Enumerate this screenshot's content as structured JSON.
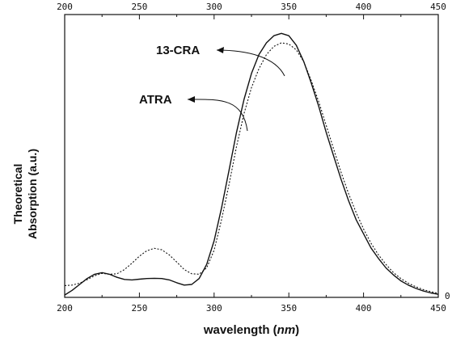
{
  "chart_data": {
    "type": "line",
    "xlabel": "wavelength (nm)",
    "xlabel_parts": {
      "before": "wavelength (",
      "italic": "nm",
      "after": ")"
    },
    "ylabel_lines": [
      "Theoretical",
      "Absorption (a.u.)"
    ],
    "xlim": [
      200,
      450
    ],
    "ylim": [
      0,
      1.2
    ],
    "x_ticks": [
      200,
      250,
      300,
      350,
      400,
      450
    ],
    "top_ticks": [
      200,
      250,
      300,
      350,
      400,
      450
    ],
    "right_tick_label": "0",
    "series": [
      {
        "name": "13-CRA",
        "style": "solid",
        "color": "#111111",
        "points": [
          [
            200,
            0.01
          ],
          [
            205,
            0.03
          ],
          [
            210,
            0.055
          ],
          [
            215,
            0.08
          ],
          [
            220,
            0.098
          ],
          [
            225,
            0.105
          ],
          [
            230,
            0.098
          ],
          [
            235,
            0.085
          ],
          [
            240,
            0.076
          ],
          [
            245,
            0.074
          ],
          [
            250,
            0.077
          ],
          [
            255,
            0.08
          ],
          [
            260,
            0.081
          ],
          [
            265,
            0.08
          ],
          [
            270,
            0.074
          ],
          [
            275,
            0.062
          ],
          [
            280,
            0.052
          ],
          [
            285,
            0.055
          ],
          [
            290,
            0.08
          ],
          [
            295,
            0.14
          ],
          [
            300,
            0.24
          ],
          [
            305,
            0.38
          ],
          [
            310,
            0.54
          ],
          [
            315,
            0.7
          ],
          [
            320,
            0.84
          ],
          [
            325,
            0.95
          ],
          [
            330,
            1.03
          ],
          [
            335,
            1.08
          ],
          [
            340,
            1.11
          ],
          [
            345,
            1.12
          ],
          [
            350,
            1.11
          ],
          [
            355,
            1.07
          ],
          [
            360,
            1.0
          ],
          [
            365,
            0.91
          ],
          [
            370,
            0.81
          ],
          [
            375,
            0.7
          ],
          [
            380,
            0.6
          ],
          [
            385,
            0.5
          ],
          [
            390,
            0.41
          ],
          [
            395,
            0.33
          ],
          [
            400,
            0.27
          ],
          [
            405,
            0.21
          ],
          [
            410,
            0.165
          ],
          [
            415,
            0.125
          ],
          [
            420,
            0.095
          ],
          [
            425,
            0.07
          ],
          [
            430,
            0.052
          ],
          [
            435,
            0.038
          ],
          [
            440,
            0.027
          ],
          [
            445,
            0.019
          ],
          [
            450,
            0.013
          ]
        ]
      },
      {
        "name": "ATRA",
        "style": "dotted",
        "color": "#111111",
        "points": [
          [
            200,
            0.05
          ],
          [
            205,
            0.052
          ],
          [
            210,
            0.06
          ],
          [
            215,
            0.075
          ],
          [
            220,
            0.092
          ],
          [
            225,
            0.102
          ],
          [
            230,
            0.098
          ],
          [
            235,
            0.1
          ],
          [
            240,
            0.118
          ],
          [
            245,
            0.145
          ],
          [
            250,
            0.175
          ],
          [
            255,
            0.198
          ],
          [
            260,
            0.208
          ],
          [
            265,
            0.202
          ],
          [
            270,
            0.18
          ],
          [
            275,
            0.15
          ],
          [
            280,
            0.118
          ],
          [
            285,
            0.1
          ],
          [
            290,
            0.098
          ],
          [
            295,
            0.125
          ],
          [
            300,
            0.2
          ],
          [
            305,
            0.33
          ],
          [
            310,
            0.48
          ],
          [
            315,
            0.64
          ],
          [
            320,
            0.78
          ],
          [
            325,
            0.89
          ],
          [
            330,
            0.97
          ],
          [
            335,
            1.03
          ],
          [
            340,
            1.065
          ],
          [
            345,
            1.08
          ],
          [
            350,
            1.075
          ],
          [
            355,
            1.05
          ],
          [
            360,
            1.0
          ],
          [
            365,
            0.92
          ],
          [
            370,
            0.83
          ],
          [
            375,
            0.73
          ],
          [
            380,
            0.63
          ],
          [
            385,
            0.53
          ],
          [
            390,
            0.44
          ],
          [
            395,
            0.36
          ],
          [
            400,
            0.29
          ],
          [
            405,
            0.23
          ],
          [
            410,
            0.18
          ],
          [
            415,
            0.14
          ],
          [
            420,
            0.105
          ],
          [
            425,
            0.08
          ],
          [
            430,
            0.06
          ],
          [
            435,
            0.045
          ],
          [
            440,
            0.033
          ],
          [
            445,
            0.024
          ],
          [
            450,
            0.017
          ]
        ]
      }
    ],
    "annotations": [
      {
        "text": "13-CRA",
        "series": "13-CRA"
      },
      {
        "text": "ATRA",
        "series": "ATRA"
      }
    ]
  }
}
